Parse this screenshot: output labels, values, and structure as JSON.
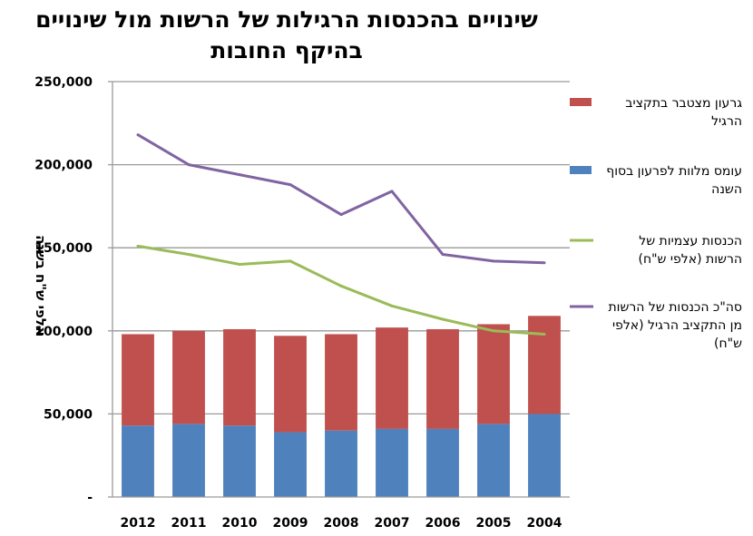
{
  "chart_data": {
    "type": "bar",
    "subtype": "stacked-bar-with-lines",
    "title": [
      "שינויים בהכנסות הרגילות של הרשות מול שינויים",
      "בהיקף החובות"
    ],
    "xlabel": "",
    "ylabel": "אלפי ש\"ח בשנה",
    "ylim": [
      0,
      250000
    ],
    "yticks": [
      0,
      50000,
      100000,
      150000,
      200000,
      250000
    ],
    "ytick_labels": [
      "-",
      "50,000",
      "100,000",
      "150,000",
      "200,000",
      "250,000"
    ],
    "grid": true,
    "x_direction": "right-to-left",
    "categories": [
      "2012",
      "2011",
      "2010",
      "2009",
      "2008",
      "2007",
      "2006",
      "2005",
      "2004"
    ],
    "legend_position": "right",
    "series": [
      {
        "name": "עומס מלוות לפרעון בסוף השנה",
        "legend_lines": [
          "עומס מלוות לפרעון בסוף",
          "השנה"
        ],
        "kind": "bar-stack-bottom",
        "color": "#4F81BD",
        "values": [
          43000,
          44000,
          43000,
          39000,
          40000,
          41000,
          41000,
          44000,
          50000
        ]
      },
      {
        "name": "גרעון מצטבר בתקציב הרגיל",
        "legend_lines": [
          "גרעון מצטבר בתקציב",
          "הרגיל"
        ],
        "kind": "bar-stack-top",
        "color": "#C0504D",
        "values": [
          55000,
          56000,
          58000,
          58000,
          58000,
          61000,
          60000,
          60000,
          59000
        ]
      },
      {
        "name": "הכנסות עצמיות של הרשות (אלפי ש\"ח)",
        "legend_lines": [
          "הכנסות עצמיות של",
          "הרשות  (אלפי ש\"ח)"
        ],
        "kind": "line",
        "color": "#9BBB59",
        "values": [
          151000,
          146000,
          140000,
          142000,
          127000,
          115000,
          107000,
          100000,
          98000
        ]
      },
      {
        "name": "סה\"כ הכנסות של הרשות מן התקציב הרגיל (אלפי ש\"ח)",
        "legend_lines": [
          "סה\"כ הכנסות של הרשות",
          "מן התקציב הרגיל  (אלפי",
          "ש\"ח)"
        ],
        "kind": "line",
        "color": "#8064A2",
        "values": [
          218000,
          200000,
          194000,
          188000,
          170000,
          184000,
          146000,
          142000,
          141000
        ]
      }
    ]
  }
}
